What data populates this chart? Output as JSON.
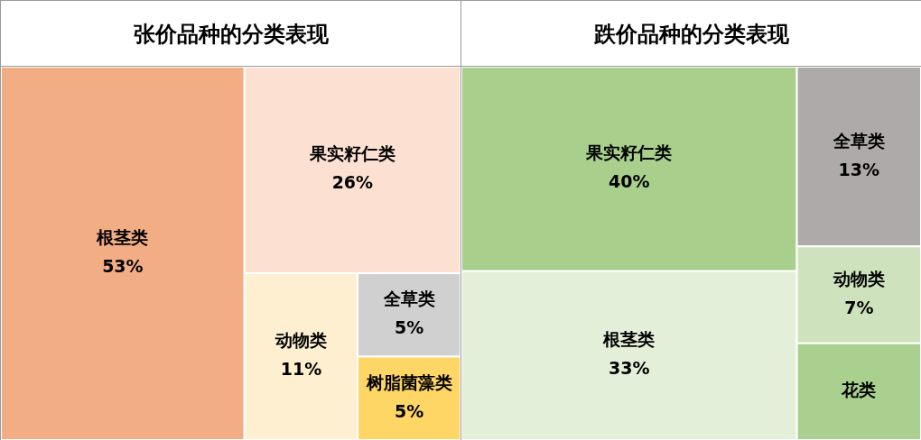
{
  "chart_data": [
    {
      "type": "other",
      "title": "张价品种的分类表现",
      "categories": [
        "根茎类",
        "果实籽仁类",
        "动物类",
        "全草类",
        "树脂菌藻类"
      ],
      "values": [
        53,
        26,
        11,
        5,
        5
      ],
      "value_labels": [
        "53%",
        "26%",
        "11%",
        "5%",
        "5%"
      ],
      "colors": [
        "#f3ad84",
        "#fce0d2",
        "#fdefd0",
        "#d0d0d0",
        "#fdd666"
      ]
    },
    {
      "type": "other",
      "title": "跌价品种的分类表现",
      "categories": [
        "果实籽仁类",
        "根茎类",
        "全草类",
        "动物类",
        "花类"
      ],
      "values": [
        40,
        33,
        13,
        7,
        null
      ],
      "value_labels": [
        "40%",
        "33%",
        "13%",
        "7%",
        null
      ],
      "colors": [
        "#a8cf8c",
        "#e3efd9",
        "#aeaaaa",
        "#cee3bd",
        "#a9d08e"
      ]
    }
  ]
}
